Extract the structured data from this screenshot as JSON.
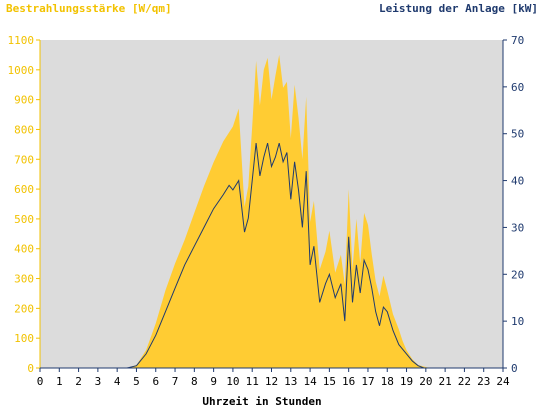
{
  "chart_data": {
    "type": "area",
    "title_left": "Bestrahlungsstärke [W/qm]",
    "title_right": "Leistung der Anlage [kW]",
    "xlabel": "Uhrzeit in Stunden",
    "x_ticks": [
      "0",
      "1",
      "2",
      "3",
      "4",
      "5",
      "6",
      "7",
      "8",
      "9",
      "10",
      "11",
      "12",
      "13",
      "14",
      "15",
      "16",
      "17",
      "18",
      "19",
      "20",
      "21",
      "22",
      "23",
      "24"
    ],
    "xlim": [
      0,
      24
    ],
    "ylim_left": [
      0,
      1100
    ],
    "ylim_right": [
      0,
      70
    ],
    "y_ticks_left": [
      "0",
      "100",
      "200",
      "300",
      "400",
      "500",
      "600",
      "700",
      "800",
      "900",
      "1000",
      "1100"
    ],
    "y_ticks_right": [
      "0",
      "10",
      "20",
      "30",
      "40",
      "50",
      "60",
      "70"
    ],
    "grid": false,
    "colors": {
      "plot_background": "#dcdcdc",
      "irradiance_fill": "#ffcc33",
      "power_line": "#1f3a6e",
      "left_axis_text": "#f2c200",
      "right_axis_text": "#1f3a6e"
    },
    "series": [
      {
        "axis": "left",
        "style": "area",
        "x": [
          0,
          4.5,
          5.0,
          5.5,
          6.0,
          6.5,
          7.0,
          7.5,
          8.0,
          8.5,
          9.0,
          9.5,
          9.8,
          10.0,
          10.3,
          10.6,
          10.8,
          11.0,
          11.2,
          11.4,
          11.6,
          11.8,
          12.0,
          12.2,
          12.4,
          12.6,
          12.8,
          13.0,
          13.2,
          13.4,
          13.6,
          13.8,
          14.0,
          14.2,
          14.5,
          14.8,
          15.0,
          15.3,
          15.6,
          15.8,
          16.0,
          16.2,
          16.4,
          16.6,
          16.8,
          17.0,
          17.2,
          17.4,
          17.6,
          17.8,
          18.0,
          18.3,
          18.6,
          18.8,
          19.0,
          19.3,
          19.6,
          19.9,
          20.2,
          20.5,
          24
        ],
        "y": [
          0,
          0,
          10,
          60,
          150,
          260,
          350,
          430,
          520,
          610,
          690,
          760,
          790,
          810,
          870,
          540,
          610,
          810,
          1030,
          880,
          1000,
          1040,
          900,
          980,
          1050,
          940,
          960,
          770,
          950,
          840,
          700,
          910,
          490,
          560,
          330,
          390,
          460,
          320,
          380,
          280,
          600,
          330,
          500,
          350,
          520,
          480,
          380,
          290,
          240,
          310,
          260,
          180,
          130,
          90,
          60,
          30,
          10,
          5,
          0,
          0,
          0
        ]
      },
      {
        "axis": "right",
        "style": "line",
        "x": [
          0,
          4.5,
          5.0,
          5.5,
          6.0,
          6.5,
          7.0,
          7.5,
          8.0,
          8.5,
          9.0,
          9.5,
          9.8,
          10.0,
          10.3,
          10.6,
          10.8,
          11.0,
          11.2,
          11.4,
          11.6,
          11.8,
          12.0,
          12.2,
          12.4,
          12.6,
          12.8,
          13.0,
          13.2,
          13.4,
          13.6,
          13.8,
          14.0,
          14.2,
          14.5,
          14.8,
          15.0,
          15.3,
          15.6,
          15.8,
          16.0,
          16.2,
          16.4,
          16.6,
          16.8,
          17.0,
          17.2,
          17.4,
          17.6,
          17.8,
          18.0,
          18.3,
          18.6,
          18.8,
          19.0,
          19.3,
          19.6,
          19.9,
          20.2,
          20.5,
          24
        ],
        "y": [
          0,
          0,
          0.5,
          3,
          7,
          12,
          17,
          22,
          26,
          30,
          34,
          37,
          39,
          38,
          40,
          29,
          32,
          40,
          48,
          41,
          45,
          48,
          43,
          45,
          48,
          44,
          46,
          36,
          44,
          38,
          30,
          42,
          22,
          26,
          14,
          18,
          20,
          15,
          18,
          10,
          28,
          14,
          22,
          16,
          23,
          21,
          17,
          12,
          9,
          13,
          12,
          8,
          5,
          4,
          3,
          1.5,
          0.5,
          0,
          0,
          0,
          0
        ]
      }
    ]
  }
}
